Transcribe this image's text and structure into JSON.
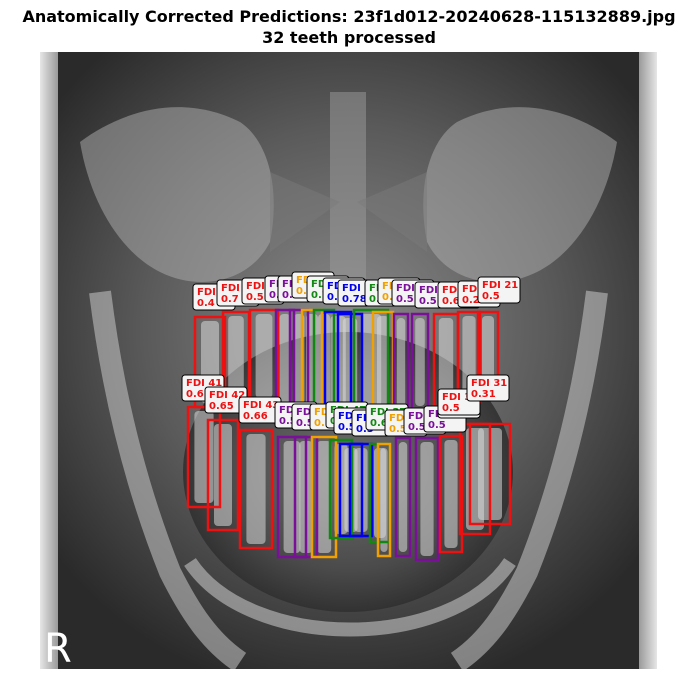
{
  "title_line1": "Anatomically Corrected Predictions: 23f1d012-20240628-115132889.jpg",
  "title_line2": "32 teeth processed",
  "watermark_letter": "R",
  "colors": {
    "red": "#ee1111",
    "purple": "#7a0f9a",
    "orange": "#f0a000",
    "green": "#118811",
    "blue": "#0000ee",
    "label_bg": "#f4f4f4"
  },
  "upper_teeth": [
    {
      "label": "FDI 18",
      "score": "0.4",
      "color": "red"
    },
    {
      "label": "FDI 17",
      "score": "0.7",
      "color": "red"
    },
    {
      "label": "FDI 16",
      "score": "0.5",
      "color": "red"
    },
    {
      "label": "FDI 15",
      "score": "0.6",
      "color": "purple"
    },
    {
      "label": "FDI 14",
      "score": "0.5",
      "color": "purple"
    },
    {
      "label": "FDI 13",
      "score": "0.7",
      "color": "orange"
    },
    {
      "label": "FDI 12",
      "score": "0.7",
      "color": "green"
    },
    {
      "label": "FDI 11",
      "score": "0.8",
      "color": "blue"
    },
    {
      "label": "FDI 28",
      "score": "0.78",
      "color": "blue"
    },
    {
      "label": "FDI 27",
      "score": "0.72",
      "color": "green"
    },
    {
      "label": "FDI 26",
      "score": "0.6",
      "color": "orange"
    },
    {
      "label": "FDI 25",
      "score": "0.5",
      "color": "purple"
    },
    {
      "label": "FDI 24",
      "score": "0.5",
      "color": "purple"
    },
    {
      "label": "FDI 23",
      "score": "0.62",
      "color": "red"
    },
    {
      "label": "FDI 22",
      "score": "0.2",
      "color": "red"
    },
    {
      "label": "FDI 21",
      "score": "0.5",
      "color": "red"
    }
  ],
  "lower_teeth": [
    {
      "label": "FDI 41",
      "score": "0.6",
      "color": "red"
    },
    {
      "label": "FDI 42",
      "score": "0.65",
      "color": "red"
    },
    {
      "label": "FDI 43",
      "score": "0.66",
      "color": "red"
    },
    {
      "label": "FDI 44",
      "score": "0.5",
      "color": "purple"
    },
    {
      "label": "FDI 45",
      "score": "0.5",
      "color": "purple"
    },
    {
      "label": "FDI 46",
      "score": "0.5",
      "color": "orange"
    },
    {
      "label": "FDI 47",
      "score": "0.6",
      "color": "green"
    },
    {
      "label": "FDI 48",
      "score": "0.59",
      "color": "blue"
    },
    {
      "label": "FDI 38",
      "score": "0.5",
      "color": "blue"
    },
    {
      "label": "FDI 37",
      "score": "0.6",
      "color": "green"
    },
    {
      "label": "FDI 36",
      "score": "0.5",
      "color": "orange"
    },
    {
      "label": "FDI 35",
      "score": "0.5",
      "color": "purple"
    },
    {
      "label": "FDI 34",
      "score": "0.5",
      "color": "purple"
    },
    {
      "label": "FDI 33",
      "score": "0.5",
      "color": "red"
    },
    {
      "label": "FDI 32",
      "score": "0.5",
      "color": "red"
    },
    {
      "label": "FDI 31",
      "score": "0.31",
      "color": "red"
    }
  ]
}
